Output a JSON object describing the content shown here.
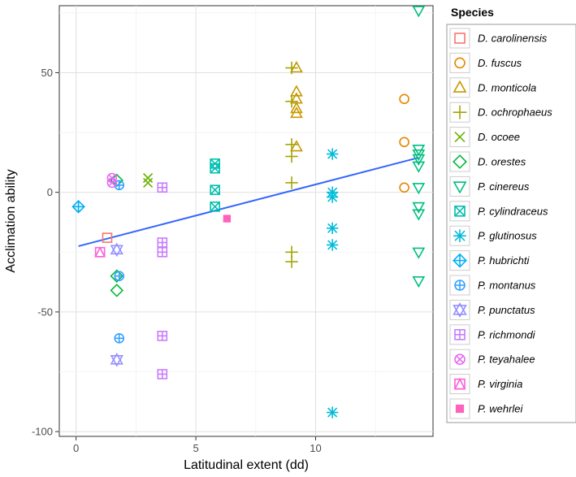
{
  "chart_data": {
    "type": "scatter",
    "xlabel": "Latitudinal extent (dd)",
    "ylabel": "Acclimation ability",
    "xlim": [
      -0.7,
      14.9
    ],
    "ylim": [
      -102,
      78
    ],
    "x_ticks": [
      0,
      5,
      10
    ],
    "y_ticks": [
      -100,
      -50,
      0,
      50
    ],
    "grid": true,
    "legend_title": "Species",
    "legend_position": "right",
    "trend_line": {
      "x": [
        0.1,
        14.3
      ],
      "y": [
        -22.5,
        14.5
      ],
      "color": "#3366ff"
    },
    "series": [
      {
        "name": "D. carolinensis",
        "shape": "square-open",
        "color": "#f8766d",
        "points": [
          [
            1.3,
            -19
          ]
        ]
      },
      {
        "name": "D. fuscus",
        "shape": "circle-open",
        "color": "#e58700",
        "points": [
          [
            13.7,
            39
          ],
          [
            13.7,
            21
          ],
          [
            13.7,
            2
          ]
        ]
      },
      {
        "name": "D. monticola",
        "shape": "triangle-open",
        "color": "#c99800",
        "points": [
          [
            9.2,
            52
          ],
          [
            9.2,
            42
          ],
          [
            9.2,
            39
          ],
          [
            9.2,
            35
          ],
          [
            9.2,
            33
          ],
          [
            9.2,
            19
          ]
        ]
      },
      {
        "name": "D. ochrophaeus",
        "shape": "plus",
        "color": "#a3a500",
        "points": [
          [
            9.0,
            52
          ],
          [
            9.0,
            38
          ],
          [
            9.0,
            20
          ],
          [
            9.0,
            15
          ],
          [
            9.0,
            4
          ],
          [
            9.0,
            -25
          ],
          [
            9.0,
            -29
          ]
        ]
      },
      {
        "name": "D. ocoee",
        "shape": "cross",
        "color": "#6bb100",
        "points": [
          [
            3.0,
            6
          ],
          [
            3.0,
            4
          ]
        ]
      },
      {
        "name": "D. orestes",
        "shape": "diamond-open",
        "color": "#00ba38",
        "points": [
          [
            1.7,
            5
          ],
          [
            1.7,
            -35
          ],
          [
            1.7,
            -41
          ]
        ]
      },
      {
        "name": "P. cinereus",
        "shape": "triangle-down-open",
        "color": "#00bf7d",
        "points": [
          [
            14.3,
            76
          ],
          [
            14.3,
            18
          ],
          [
            14.3,
            16
          ],
          [
            14.3,
            14
          ],
          [
            14.3,
            11
          ],
          [
            14.3,
            2
          ],
          [
            14.3,
            -6
          ],
          [
            14.3,
            -9
          ],
          [
            14.3,
            -25
          ],
          [
            14.3,
            -37
          ]
        ]
      },
      {
        "name": "P. cylindraceus",
        "shape": "square-cross",
        "color": "#00c0af",
        "points": [
          [
            5.8,
            12
          ],
          [
            5.8,
            10
          ],
          [
            5.8,
            1
          ],
          [
            5.8,
            -6
          ]
        ]
      },
      {
        "name": "P. glutinosus",
        "shape": "asterisk",
        "color": "#00bcd8",
        "points": [
          [
            10.7,
            16
          ],
          [
            10.7,
            0
          ],
          [
            10.7,
            -2
          ],
          [
            10.7,
            -15
          ],
          [
            10.7,
            -22
          ],
          [
            10.7,
            -92
          ]
        ]
      },
      {
        "name": "P. hubrichti",
        "shape": "diamond-plus",
        "color": "#00b0f6",
        "points": [
          [
            0.1,
            -6
          ]
        ]
      },
      {
        "name": "P. montanus",
        "shape": "circle-plus",
        "color": "#35a2ff",
        "points": [
          [
            1.8,
            3
          ],
          [
            1.8,
            -35
          ],
          [
            1.8,
            -61
          ]
        ]
      },
      {
        "name": "P. punctatus",
        "shape": "star-david",
        "color": "#9590ff",
        "points": [
          [
            1.7,
            -24
          ],
          [
            1.7,
            -70
          ]
        ]
      },
      {
        "name": "P. richmondi",
        "shape": "square-plus",
        "color": "#c77cff",
        "points": [
          [
            3.6,
            2
          ],
          [
            3.6,
            -21
          ],
          [
            3.6,
            -25
          ],
          [
            3.6,
            -60
          ],
          [
            3.6,
            -76
          ]
        ]
      },
      {
        "name": "P. teyahalee",
        "shape": "circle-cross",
        "color": "#e76bf3",
        "points": [
          [
            1.5,
            6
          ],
          [
            1.5,
            4
          ]
        ]
      },
      {
        "name": "P. virginia",
        "shape": "square-triangle",
        "color": "#fa62db",
        "points": [
          [
            1.0,
            -25
          ]
        ]
      },
      {
        "name": "P. wehrlei",
        "shape": "square-filled",
        "color": "#ff62bc",
        "points": [
          [
            6.3,
            -11
          ]
        ]
      }
    ]
  }
}
